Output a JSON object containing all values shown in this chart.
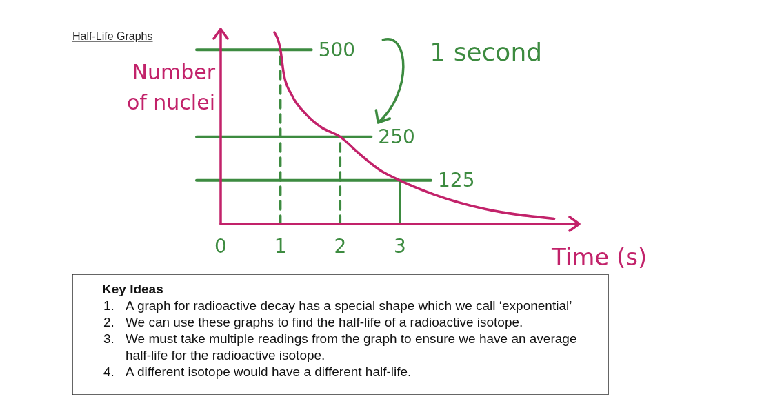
{
  "chart_data": {
    "type": "line",
    "title": "Half-Life Graphs",
    "xlabel": "Time (s)",
    "ylabel": "Number of nuclei",
    "x": [
      0.9,
      1,
      1.06,
      1.19,
      1.44,
      1.68,
      2,
      2.33,
      2.67,
      3,
      3.58,
      4.42,
      5.58
    ],
    "series": [
      {
        "color": "#c2226a",
        "values": [
          550,
          500,
          427,
          370,
          313,
          278,
          250,
          200,
          154,
          125,
          84,
          43,
          15
        ]
      }
    ],
    "xlim": [
      0,
      6
    ],
    "xticks": [
      0,
      1,
      2,
      3
    ],
    "ylim": [
      0,
      560
    ],
    "ref_lines": [
      {
        "axis": "y",
        "value": 500,
        "label": "500",
        "color": "#3d8b40"
      },
      {
        "axis": "y",
        "value": 250,
        "label": "250",
        "color": "#3d8b40"
      },
      {
        "axis": "y",
        "value": 125,
        "label": "125",
        "color": "#3d8b40"
      },
      {
        "axis": "x",
        "value": 1,
        "line_style": "dashed",
        "color": "#3d8b40"
      },
      {
        "axis": "x",
        "value": 2,
        "line_style": "dashed",
        "color": "#3d8b40"
      },
      {
        "axis": "x",
        "value": 3,
        "line_style": "solid",
        "color": "#3d8b40"
      }
    ],
    "annotations": [
      "1 second",
      "Key Ideas",
      "1. A graph for radioactive decay has a special shape which we call ‘exponential’",
      "2. We can use these graphs to find the half-life of a radioactive isotope.",
      "3. We must take multiple readings from the graph to ensure we have an average half-life for the radioactive isotope.",
      "4. A different isotope would have a different half-life."
    ]
  }
}
